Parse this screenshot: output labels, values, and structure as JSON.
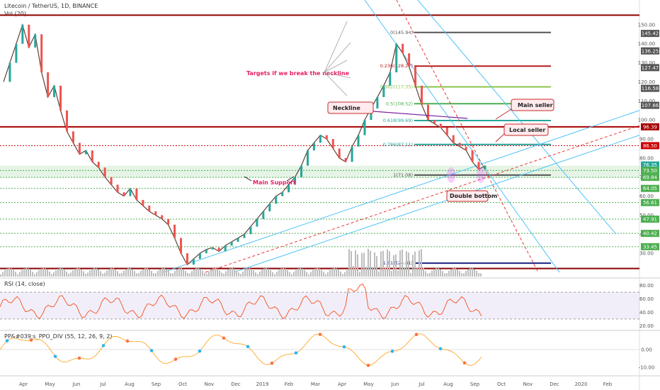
{
  "header": {
    "symbol": "Litecoin / TetherUS, 1D, BINANCE",
    "volume_label": "Vol (20)",
    "rsi_label": "RSI (14, close)",
    "ppo_label": "PP&#039;s_PPO_DIV (55, 12, 26, 9, 2)"
  },
  "chart_data": {
    "type": "line",
    "price_axis": {
      "ticks": [
        150.0,
        140.0,
        130.0,
        120.0,
        110.0,
        100.0,
        90.0,
        80.0,
        70.0,
        60.0,
        50.0,
        40.0,
        30.0
      ],
      "ylim": [
        20,
        160
      ]
    },
    "price_tags": [
      {
        "label": "145.42",
        "value": 145.42,
        "color": "#555555"
      },
      {
        "label": "136.25",
        "value": 136.25,
        "color": "#555555"
      },
      {
        "label": "127.47",
        "value": 127.47,
        "color": "#555555"
      },
      {
        "label": "116.58",
        "value": 116.58,
        "color": "#555555"
      },
      {
        "label": "107.66",
        "value": 107.66,
        "color": "#555555"
      },
      {
        "label": "96.39",
        "value": 96.39,
        "color": "#a80000"
      },
      {
        "label": "86.50",
        "value": 86.5,
        "color": "#cc0000"
      },
      {
        "label": "76.35",
        "value": 76.35,
        "color": "#26a69a"
      },
      {
        "label": "73.50",
        "value": 73.5,
        "color": "#4caf50"
      },
      {
        "label": "69.84",
        "value": 69.84,
        "color": "#4caf50"
      },
      {
        "label": "64.05",
        "value": 64.05,
        "color": "#4caf50"
      },
      {
        "label": "56.61",
        "value": 56.61,
        "color": "#4caf50"
      },
      {
        "label": "47.91",
        "value": 47.91,
        "color": "#4caf50"
      },
      {
        "label": "40.42",
        "value": 40.42,
        "color": "#4caf50"
      },
      {
        "label": "33.45",
        "value": 33.45,
        "color": "#4caf50"
      }
    ],
    "fib_levels": [
      {
        "label": "0(145.94)",
        "value": 145.94,
        "color": "#555555"
      },
      {
        "label": "0.236(128.27)",
        "value": 128.27,
        "color": "#b71c1c"
      },
      {
        "label": "0.382(117.35)",
        "value": 117.35,
        "color": "#8bc34a"
      },
      {
        "label": "0.5(108.52)",
        "value": 108.52,
        "color": "#4caf50"
      },
      {
        "label": "0.618(99.69)",
        "value": 99.69,
        "color": "#26a69a"
      },
      {
        "label": "0.786(87.11)",
        "value": 87.11,
        "color": "#26a69a"
      },
      {
        "label": "1(71.08)",
        "value": 71.08,
        "color": "#555555"
      },
      {
        "label": "1.618(24.81)",
        "value": 24.81,
        "color": "#1a237e"
      }
    ],
    "support_levels": [
      73.5,
      69.84,
      64.05,
      56.61,
      47.91,
      40.42,
      33.45
    ],
    "resistance_levels": [
      96.39,
      86.5
    ],
    "time_axis": [
      "Apr",
      "May",
      "Jun",
      "Jul",
      "Aug",
      "Sep",
      "Oct",
      "Nov",
      "Dec",
      "2019",
      "Feb",
      "Mar",
      "Apr",
      "May",
      "Jun",
      "Jul",
      "Aug",
      "Sep",
      "Oct",
      "Nov",
      "Dec",
      "2020",
      "Feb"
    ],
    "price_series": [
      120,
      130,
      140,
      150,
      138,
      145,
      125,
      112,
      118,
      105,
      94,
      88,
      82,
      84,
      78,
      75,
      70,
      66,
      62,
      60,
      64,
      58,
      55,
      52,
      50,
      48,
      45,
      38,
      30,
      24,
      27,
      30,
      32,
      33,
      31,
      34,
      36,
      38,
      40,
      44,
      48,
      52,
      56,
      60,
      62,
      66,
      70,
      76,
      84,
      88,
      92,
      90,
      85,
      80,
      78,
      86,
      92,
      100,
      106,
      112,
      118,
      125,
      140,
      135,
      128,
      118,
      108,
      100,
      98,
      96,
      92,
      88,
      86,
      84,
      78,
      74,
      76
    ],
    "rsi_axis": {
      "ticks": [
        80.0,
        60.0,
        40.0,
        20.0
      ],
      "ylim": [
        15,
        85
      ]
    },
    "ppo_axis": {
      "ticks": [
        "0.00",
        "-10.00"
      ],
      "ylim": [
        -14,
        6
      ]
    }
  },
  "annotations": {
    "targets": "Targets if we break the neckline",
    "neckline": "Neckline",
    "main_seller": "Main seller",
    "local_seller": "Local seller",
    "main_support": "Main Support",
    "double_bottom": "Double bottom"
  }
}
